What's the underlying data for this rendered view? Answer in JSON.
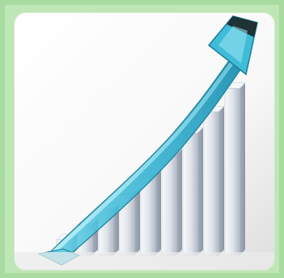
{
  "image": {
    "description": "",
    "colors": {
      "frame": "#a8dba0",
      "arrow_main": "#39b8d4",
      "arrow_light": "#8fe0ef",
      "arrow_dark": "#1b7f9a",
      "arrow_tip": "#1a1a1a",
      "bars_light": "#e9edf3",
      "bars_shadow": "#aab2be"
    },
    "bars": [
      {
        "level": 0.08
      },
      {
        "level": 0.16
      },
      {
        "level": 0.24
      },
      {
        "level": 0.32
      },
      {
        "level": 0.42
      },
      {
        "level": 0.52
      },
      {
        "level": 0.63
      },
      {
        "level": 0.74
      },
      {
        "level": 0.86
      }
    ]
  }
}
